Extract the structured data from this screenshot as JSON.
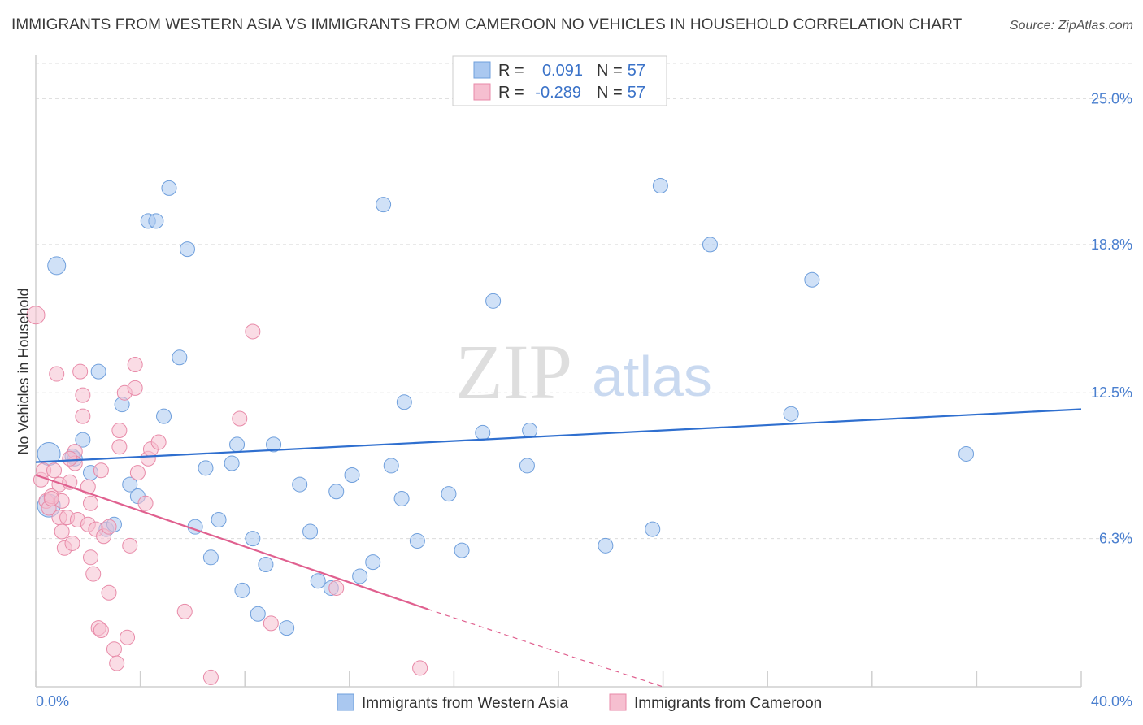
{
  "title": "IMMIGRANTS FROM WESTERN ASIA VS IMMIGRANTS FROM CAMEROON NO VEHICLES IN HOUSEHOLD CORRELATION CHART",
  "source": "Source: ZipAtlas.com",
  "watermark": {
    "zip": "ZIP",
    "atlas": "atlas"
  },
  "colors": {
    "blue_fill": "#aac8f0",
    "blue_stroke": "#6f9fdc",
    "blue_line": "#2f6fcf",
    "pink_fill": "#f6bfd0",
    "pink_stroke": "#e88aa8",
    "pink_line": "#e0608f",
    "tick_text": "#4a7fcf",
    "grid": "#dcdcdc"
  },
  "legend": {
    "rows": [
      {
        "r_label": "R =",
        "r_value": "0.091",
        "n_label": "N =",
        "n_value": "57",
        "series": "blue"
      },
      {
        "r_label": "R =",
        "r_value": "-0.289",
        "n_label": "N =",
        "n_value": "57",
        "series": "pink"
      }
    ]
  },
  "bottom_legend": [
    "Immigrants from Western Asia",
    "Immigrants from Cameroon"
  ],
  "chart_data": {
    "type": "scatter",
    "xlabel": "",
    "ylabel": "No Vehicles in Household",
    "xlim": [
      0,
      40
    ],
    "ylim": [
      0,
      26.5
    ],
    "x_tick_labels": [
      "0.0%",
      "40.0%"
    ],
    "y_ticks": [
      6.3,
      12.5,
      18.8,
      25.0
    ],
    "y_tick_labels": [
      "6.3%",
      "12.5%",
      "18.8%",
      "25.0%"
    ],
    "grid": true,
    "legend_position": "top-center",
    "series": [
      {
        "name": "Immigrants from Western Asia",
        "color": "blue",
        "r": 0.091,
        "n": 57,
        "trend": {
          "x": [
            0,
            40
          ],
          "y": [
            9.55,
            11.8
          ],
          "dashed_to": null
        },
        "points": [
          {
            "x": 0.5,
            "y": 7.7,
            "s": 3
          },
          {
            "x": 0.5,
            "y": 9.9,
            "s": 3
          },
          {
            "x": 0.8,
            "y": 17.9,
            "s": 2
          },
          {
            "x": 1.5,
            "y": 9.7,
            "s": 1
          },
          {
            "x": 1.8,
            "y": 10.5,
            "s": 1
          },
          {
            "x": 2.1,
            "y": 9.1,
            "s": 1
          },
          {
            "x": 2.4,
            "y": 13.4,
            "s": 1
          },
          {
            "x": 2.7,
            "y": 6.7,
            "s": 1
          },
          {
            "x": 3.0,
            "y": 6.9,
            "s": 1
          },
          {
            "x": 3.3,
            "y": 12.0,
            "s": 1
          },
          {
            "x": 3.6,
            "y": 8.6,
            "s": 1
          },
          {
            "x": 3.9,
            "y": 8.1,
            "s": 1
          },
          {
            "x": 4.3,
            "y": 19.8,
            "s": 1
          },
          {
            "x": 4.6,
            "y": 19.8,
            "s": 1
          },
          {
            "x": 4.9,
            "y": 11.5,
            "s": 1
          },
          {
            "x": 5.1,
            "y": 21.2,
            "s": 1
          },
          {
            "x": 5.5,
            "y": 14.0,
            "s": 1
          },
          {
            "x": 5.8,
            "y": 18.6,
            "s": 1
          },
          {
            "x": 6.1,
            "y": 6.8,
            "s": 1
          },
          {
            "x": 6.5,
            "y": 9.3,
            "s": 1
          },
          {
            "x": 6.7,
            "y": 5.5,
            "s": 1
          },
          {
            "x": 7.0,
            "y": 7.1,
            "s": 1
          },
          {
            "x": 7.5,
            "y": 9.5,
            "s": 1
          },
          {
            "x": 7.7,
            "y": 10.3,
            "s": 1
          },
          {
            "x": 7.9,
            "y": 4.1,
            "s": 1
          },
          {
            "x": 8.3,
            "y": 6.3,
            "s": 1
          },
          {
            "x": 8.5,
            "y": 3.1,
            "s": 1
          },
          {
            "x": 8.8,
            "y": 5.2,
            "s": 1
          },
          {
            "x": 9.1,
            "y": 10.3,
            "s": 1
          },
          {
            "x": 9.6,
            "y": 2.5,
            "s": 1
          },
          {
            "x": 10.1,
            "y": 8.6,
            "s": 1
          },
          {
            "x": 10.5,
            "y": 6.6,
            "s": 1
          },
          {
            "x": 10.8,
            "y": 4.5,
            "s": 1
          },
          {
            "x": 11.3,
            "y": 4.2,
            "s": 1
          },
          {
            "x": 11.5,
            "y": 8.3,
            "s": 1
          },
          {
            "x": 12.1,
            "y": 9.0,
            "s": 1
          },
          {
            "x": 12.4,
            "y": 4.7,
            "s": 1
          },
          {
            "x": 12.9,
            "y": 5.3,
            "s": 1
          },
          {
            "x": 13.3,
            "y": 20.5,
            "s": 1
          },
          {
            "x": 13.6,
            "y": 9.4,
            "s": 1
          },
          {
            "x": 14.0,
            "y": 8.0,
            "s": 1
          },
          {
            "x": 14.1,
            "y": 12.1,
            "s": 1
          },
          {
            "x": 14.6,
            "y": 6.2,
            "s": 1
          },
          {
            "x": 15.8,
            "y": 8.2,
            "s": 1
          },
          {
            "x": 16.3,
            "y": 5.8,
            "s": 1
          },
          {
            "x": 17.1,
            "y": 10.8,
            "s": 1
          },
          {
            "x": 17.5,
            "y": 16.4,
            "s": 1
          },
          {
            "x": 18.9,
            "y": 10.9,
            "s": 1
          },
          {
            "x": 18.8,
            "y": 9.4,
            "s": 1
          },
          {
            "x": 21.8,
            "y": 6.0,
            "s": 1
          },
          {
            "x": 23.6,
            "y": 6.7,
            "s": 1
          },
          {
            "x": 23.9,
            "y": 21.3,
            "s": 1
          },
          {
            "x": 25.8,
            "y": 18.8,
            "s": 1
          },
          {
            "x": 28.9,
            "y": 11.6,
            "s": 1
          },
          {
            "x": 29.7,
            "y": 17.3,
            "s": 1
          },
          {
            "x": 35.6,
            "y": 9.9,
            "s": 1
          },
          {
            "x": 1.4,
            "y": 9.8,
            "s": 1
          }
        ]
      },
      {
        "name": "Immigrants from Cameroon",
        "color": "pink",
        "r": -0.289,
        "n": 57,
        "trend": {
          "x": [
            0,
            15.0
          ],
          "y": [
            9.0,
            3.3
          ],
          "dashed_to": {
            "x": 24.0,
            "y": 0.0
          }
        },
        "points": [
          {
            "x": 0.0,
            "y": 15.8,
            "s": 2
          },
          {
            "x": 0.2,
            "y": 8.8,
            "s": 1
          },
          {
            "x": 0.3,
            "y": 9.2,
            "s": 1
          },
          {
            "x": 0.4,
            "y": 7.9,
            "s": 1
          },
          {
            "x": 0.5,
            "y": 7.6,
            "s": 1
          },
          {
            "x": 0.6,
            "y": 8.1,
            "s": 1
          },
          {
            "x": 0.7,
            "y": 9.2,
            "s": 1
          },
          {
            "x": 0.8,
            "y": 13.3,
            "s": 1
          },
          {
            "x": 0.9,
            "y": 8.6,
            "s": 1
          },
          {
            "x": 0.9,
            "y": 7.2,
            "s": 1
          },
          {
            "x": 1.0,
            "y": 7.9,
            "s": 1
          },
          {
            "x": 1.1,
            "y": 5.9,
            "s": 1
          },
          {
            "x": 1.2,
            "y": 7.2,
            "s": 1
          },
          {
            "x": 1.3,
            "y": 8.7,
            "s": 1
          },
          {
            "x": 1.4,
            "y": 6.1,
            "s": 1
          },
          {
            "x": 1.5,
            "y": 10.0,
            "s": 1
          },
          {
            "x": 1.5,
            "y": 9.5,
            "s": 1
          },
          {
            "x": 1.6,
            "y": 7.1,
            "s": 1
          },
          {
            "x": 1.7,
            "y": 13.4,
            "s": 1
          },
          {
            "x": 1.8,
            "y": 12.4,
            "s": 1
          },
          {
            "x": 1.8,
            "y": 11.5,
            "s": 1
          },
          {
            "x": 2.0,
            "y": 8.5,
            "s": 1
          },
          {
            "x": 2.0,
            "y": 6.9,
            "s": 1
          },
          {
            "x": 2.1,
            "y": 5.5,
            "s": 1
          },
          {
            "x": 2.1,
            "y": 7.8,
            "s": 1
          },
          {
            "x": 2.2,
            "y": 4.8,
            "s": 1
          },
          {
            "x": 2.3,
            "y": 6.7,
            "s": 1
          },
          {
            "x": 2.4,
            "y": 2.5,
            "s": 1
          },
          {
            "x": 2.5,
            "y": 9.2,
            "s": 1
          },
          {
            "x": 2.5,
            "y": 2.4,
            "s": 1
          },
          {
            "x": 2.6,
            "y": 6.4,
            "s": 1
          },
          {
            "x": 2.8,
            "y": 6.8,
            "s": 1
          },
          {
            "x": 2.8,
            "y": 4.0,
            "s": 1
          },
          {
            "x": 3.0,
            "y": 1.6,
            "s": 1
          },
          {
            "x": 3.1,
            "y": 1.0,
            "s": 1
          },
          {
            "x": 3.2,
            "y": 10.9,
            "s": 1
          },
          {
            "x": 3.2,
            "y": 10.2,
            "s": 1
          },
          {
            "x": 3.4,
            "y": 12.5,
            "s": 1
          },
          {
            "x": 3.5,
            "y": 2.1,
            "s": 1
          },
          {
            "x": 3.6,
            "y": 6.0,
            "s": 1
          },
          {
            "x": 3.8,
            "y": 13.7,
            "s": 1
          },
          {
            "x": 3.8,
            "y": 12.7,
            "s": 1
          },
          {
            "x": 3.9,
            "y": 9.1,
            "s": 1
          },
          {
            "x": 4.2,
            "y": 7.8,
            "s": 1
          },
          {
            "x": 4.3,
            "y": 9.7,
            "s": 1
          },
          {
            "x": 4.4,
            "y": 10.1,
            "s": 1
          },
          {
            "x": 4.7,
            "y": 10.4,
            "s": 1
          },
          {
            "x": 5.7,
            "y": 3.2,
            "s": 1
          },
          {
            "x": 6.7,
            "y": 0.4,
            "s": 1
          },
          {
            "x": 7.8,
            "y": 11.4,
            "s": 1
          },
          {
            "x": 8.3,
            "y": 15.1,
            "s": 1
          },
          {
            "x": 9.0,
            "y": 2.7,
            "s": 1
          },
          {
            "x": 11.5,
            "y": 4.2,
            "s": 1
          },
          {
            "x": 14.7,
            "y": 0.8,
            "s": 1
          },
          {
            "x": 1.3,
            "y": 9.7,
            "s": 1
          },
          {
            "x": 0.6,
            "y": 8.0,
            "s": 1
          },
          {
            "x": 1.0,
            "y": 6.6,
            "s": 1
          }
        ]
      }
    ]
  }
}
